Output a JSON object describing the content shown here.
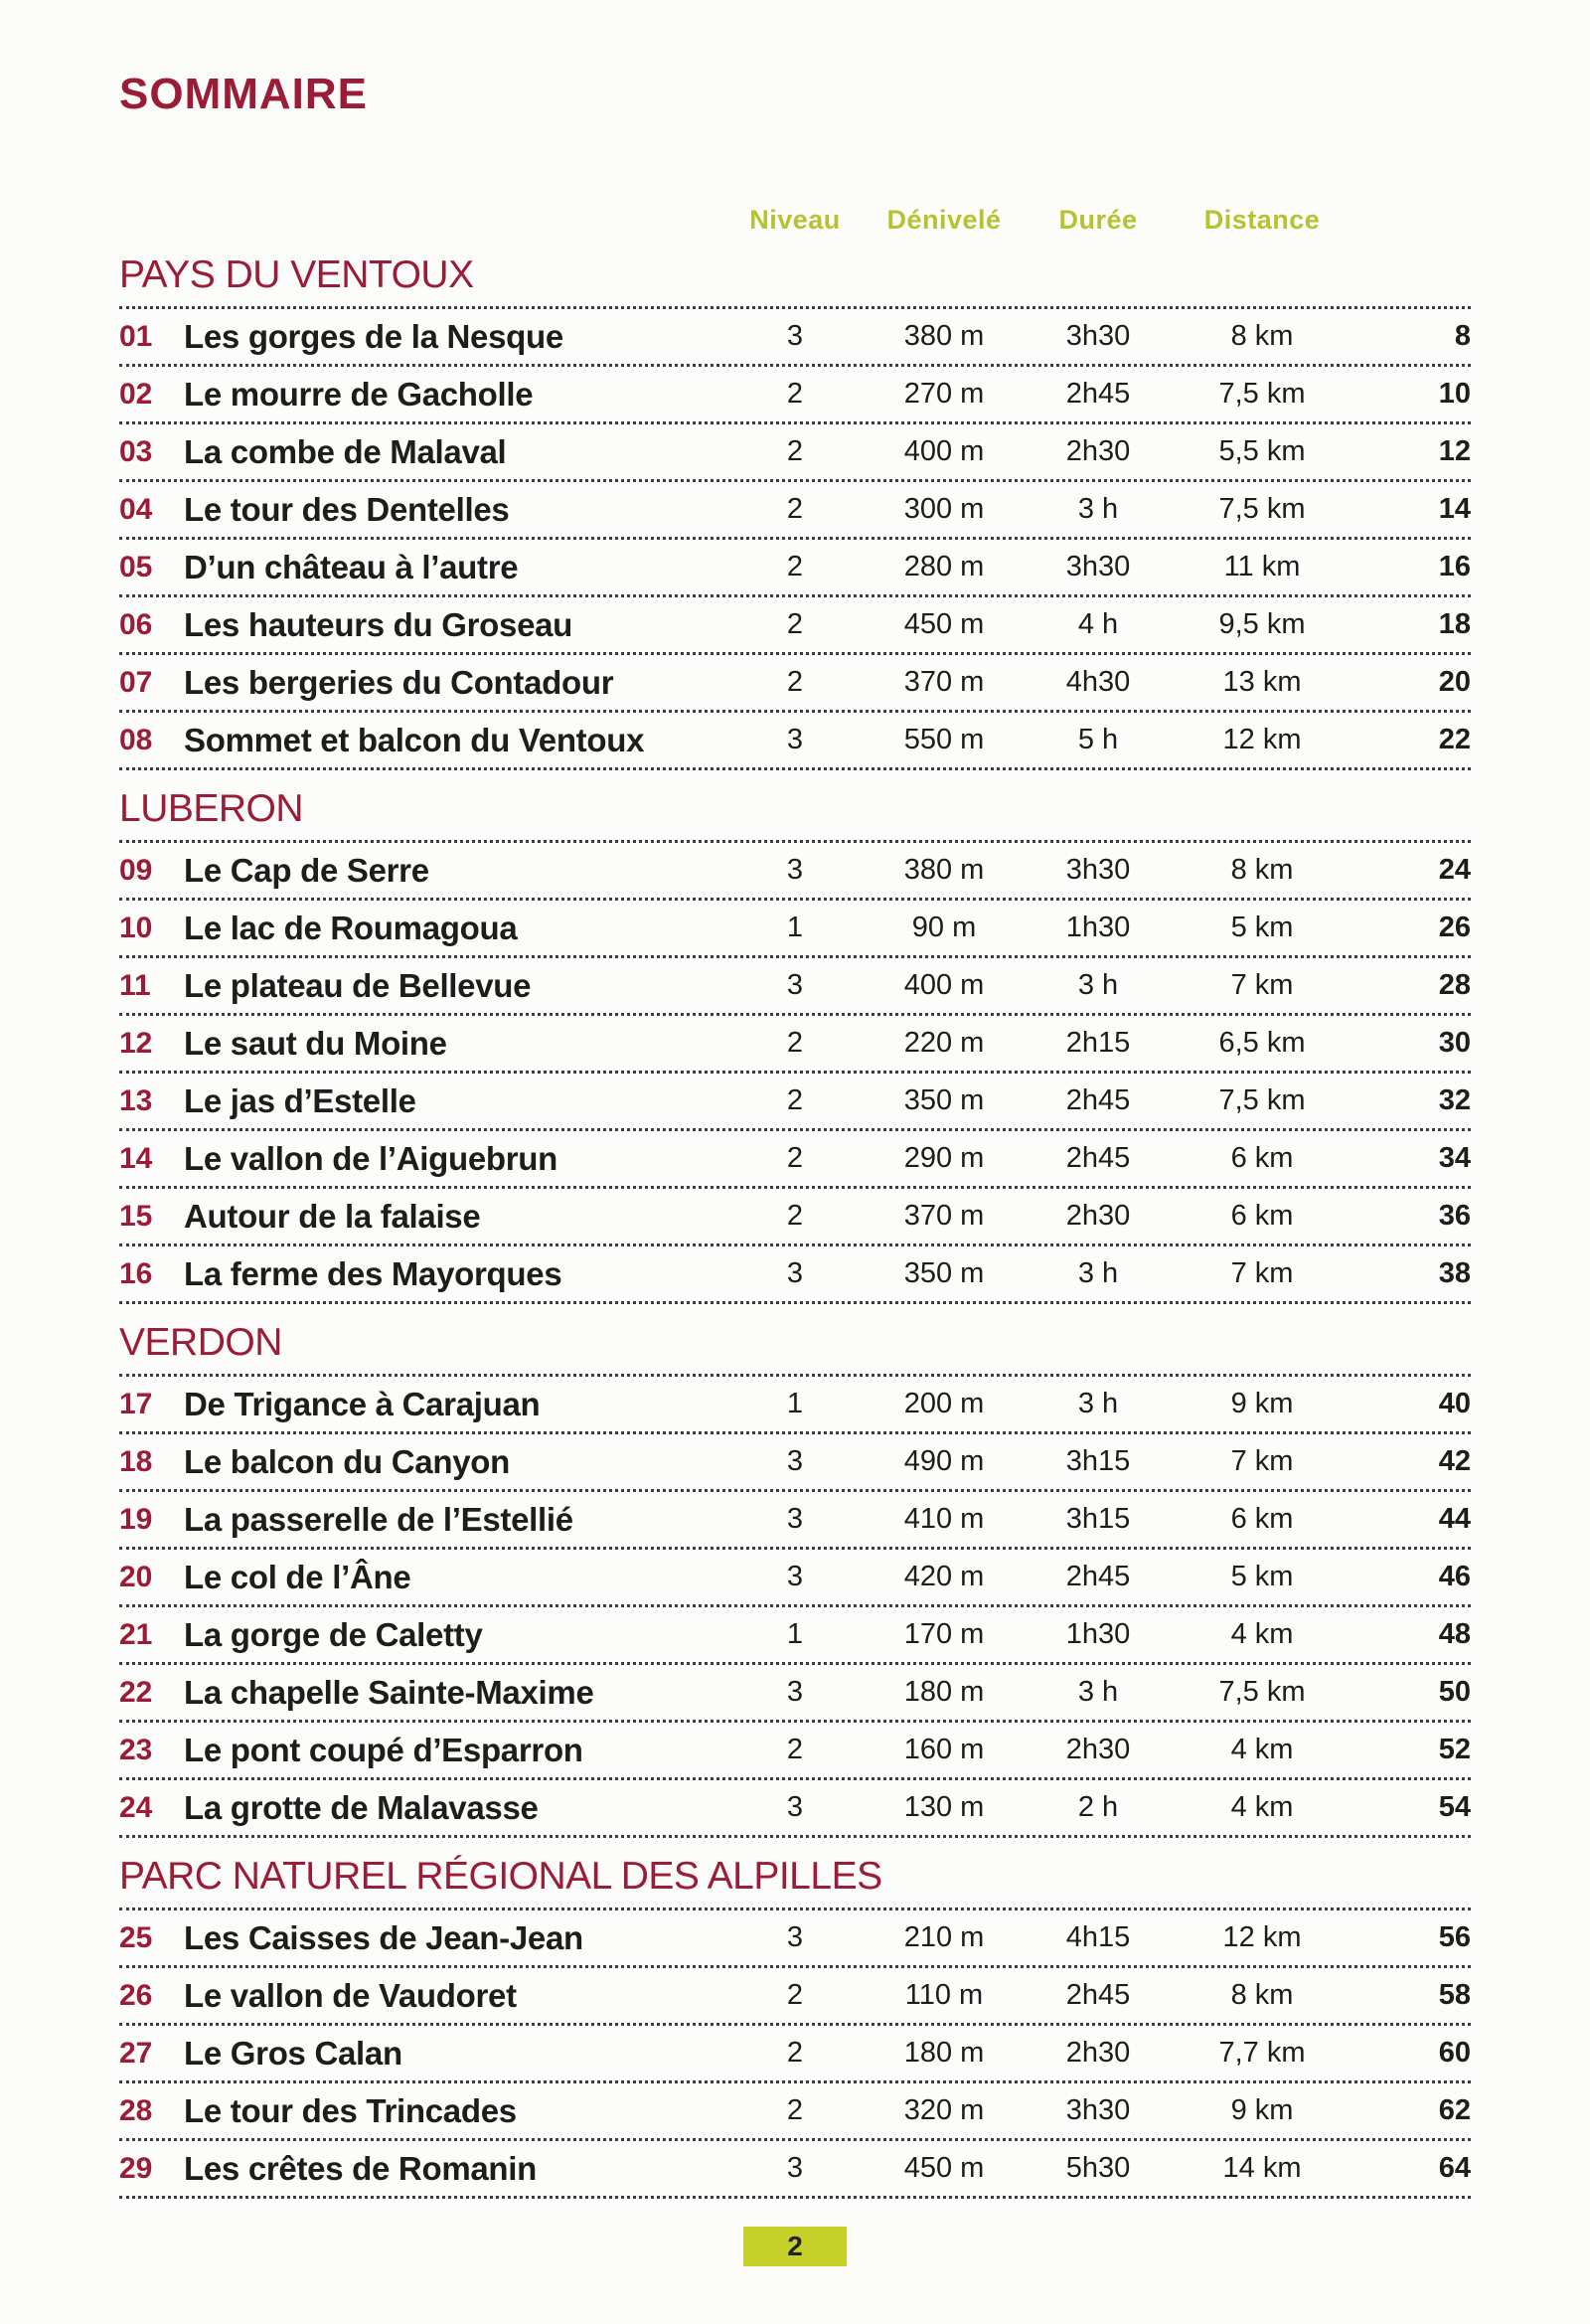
{
  "title": "SOMMAIRE",
  "columns": {
    "niveau": "Niveau",
    "denivele": "Dénivelé",
    "duree": "Durée",
    "distance": "Distance"
  },
  "sections": [
    {
      "name": "PAYS DU VENTOUX",
      "rows": [
        {
          "num": "01",
          "title": "Les gorges de la Nesque",
          "niveau": "3",
          "denivele": "380 m",
          "duree": "3h30",
          "distance": "8 km",
          "page": "8"
        },
        {
          "num": "02",
          "title": "Le mourre de Gacholle",
          "niveau": "2",
          "denivele": "270 m",
          "duree": "2h45",
          "distance": "7,5 km",
          "page": "10"
        },
        {
          "num": "03",
          "title": "La combe de Malaval",
          "niveau": "2",
          "denivele": "400 m",
          "duree": "2h30",
          "distance": "5,5 km",
          "page": "12"
        },
        {
          "num": "04",
          "title": "Le tour des Dentelles",
          "niveau": "2",
          "denivele": "300 m",
          "duree": "3 h",
          "distance": "7,5 km",
          "page": "14"
        },
        {
          "num": "05",
          "title": "D’un château à l’autre",
          "niveau": "2",
          "denivele": "280 m",
          "duree": "3h30",
          "distance": "11 km",
          "page": "16"
        },
        {
          "num": "06",
          "title": "Les hauteurs du Groseau",
          "niveau": "2",
          "denivele": "450 m",
          "duree": "4 h",
          "distance": "9,5 km",
          "page": "18"
        },
        {
          "num": "07",
          "title": "Les bergeries du Contadour",
          "niveau": "2",
          "denivele": "370 m",
          "duree": "4h30",
          "distance": "13 km",
          "page": "20"
        },
        {
          "num": "08",
          "title": "Sommet et balcon du Ventoux",
          "niveau": "3",
          "denivele": "550 m",
          "duree": "5 h",
          "distance": "12 km",
          "page": "22"
        }
      ]
    },
    {
      "name": "LUBERON",
      "rows": [
        {
          "num": "09",
          "title": "Le Cap de Serre",
          "niveau": "3",
          "denivele": "380 m",
          "duree": "3h30",
          "distance": "8 km",
          "page": "24"
        },
        {
          "num": "10",
          "title": "Le lac de Roumagoua",
          "niveau": "1",
          "denivele": "90 m",
          "duree": "1h30",
          "distance": "5 km",
          "page": "26"
        },
        {
          "num": "11",
          "title": "Le plateau de Bellevue",
          "niveau": "3",
          "denivele": "400 m",
          "duree": "3 h",
          "distance": "7 km",
          "page": "28"
        },
        {
          "num": "12",
          "title": "Le saut du Moine",
          "niveau": "2",
          "denivele": "220 m",
          "duree": "2h15",
          "distance": "6,5 km",
          "page": "30"
        },
        {
          "num": "13",
          "title": "Le jas d’Estelle",
          "niveau": "2",
          "denivele": "350 m",
          "duree": "2h45",
          "distance": "7,5 km",
          "page": "32"
        },
        {
          "num": "14",
          "title": "Le vallon de l’Aiguebrun",
          "niveau": "2",
          "denivele": "290 m",
          "duree": "2h45",
          "distance": "6 km",
          "page": "34"
        },
        {
          "num": "15",
          "title": "Autour de la falaise",
          "niveau": "2",
          "denivele": "370 m",
          "duree": "2h30",
          "distance": "6 km",
          "page": "36"
        },
        {
          "num": "16",
          "title": "La ferme des Mayorques",
          "niveau": "3",
          "denivele": "350 m",
          "duree": "3 h",
          "distance": "7 km",
          "page": "38"
        }
      ]
    },
    {
      "name": "VERDON",
      "rows": [
        {
          "num": "17",
          "title": "De Trigance à Carajuan",
          "niveau": "1",
          "denivele": "200 m",
          "duree": "3 h",
          "distance": "9 km",
          "page": "40"
        },
        {
          "num": "18",
          "title": "Le balcon du Canyon",
          "niveau": "3",
          "denivele": "490 m",
          "duree": "3h15",
          "distance": "7 km",
          "page": "42"
        },
        {
          "num": "19",
          "title": "La passerelle de l’Estellié",
          "niveau": "3",
          "denivele": "410 m",
          "duree": "3h15",
          "distance": "6 km",
          "page": "44"
        },
        {
          "num": "20",
          "title": "Le col de l’Âne",
          "niveau": "3",
          "denivele": "420 m",
          "duree": "2h45",
          "distance": "5 km",
          "page": "46"
        },
        {
          "num": "21",
          "title": "La gorge de Caletty",
          "niveau": "1",
          "denivele": "170 m",
          "duree": "1h30",
          "distance": "4 km",
          "page": "48"
        },
        {
          "num": "22",
          "title": "La chapelle Sainte-Maxime",
          "niveau": "3",
          "denivele": "180 m",
          "duree": "3 h",
          "distance": "7,5 km",
          "page": "50"
        },
        {
          "num": "23",
          "title": "Le pont coupé d’Esparron",
          "niveau": "2",
          "denivele": "160 m",
          "duree": "2h30",
          "distance": "4 km",
          "page": "52"
        },
        {
          "num": "24",
          "title": "La grotte de Malavasse",
          "niveau": "3",
          "denivele": "130 m",
          "duree": "2 h",
          "distance": "4 km",
          "page": "54"
        }
      ]
    },
    {
      "name": "PARC NATUREL RÉGIONAL DES ALPILLES",
      "rows": [
        {
          "num": "25",
          "title": "Les Caisses de Jean-Jean",
          "niveau": "3",
          "denivele": "210 m",
          "duree": "4h15",
          "distance": "12 km",
          "page": "56"
        },
        {
          "num": "26",
          "title": "Le vallon de Vaudoret",
          "niveau": "2",
          "denivele": "110 m",
          "duree": "2h45",
          "distance": "8 km",
          "page": "58"
        },
        {
          "num": "27",
          "title": "Le Gros Calan",
          "niveau": "2",
          "denivele": "180 m",
          "duree": "2h30",
          "distance": "7,7 km",
          "page": "60"
        },
        {
          "num": "28",
          "title": "Le tour des Trincades",
          "niveau": "2",
          "denivele": "320 m",
          "duree": "3h30",
          "distance": "9 km",
          "page": "62"
        },
        {
          "num": "29",
          "title": "Les crêtes de Romanin",
          "niveau": "3",
          "denivele": "450 m",
          "duree": "5h30",
          "distance": "14 km",
          "page": "64"
        }
      ]
    }
  ],
  "footer": {
    "page_number": "2"
  },
  "colors": {
    "maroon": "#9b1c36",
    "header_green": "#b5c331",
    "badge_green": "#c6d229",
    "ink": "#1d1d1b"
  }
}
